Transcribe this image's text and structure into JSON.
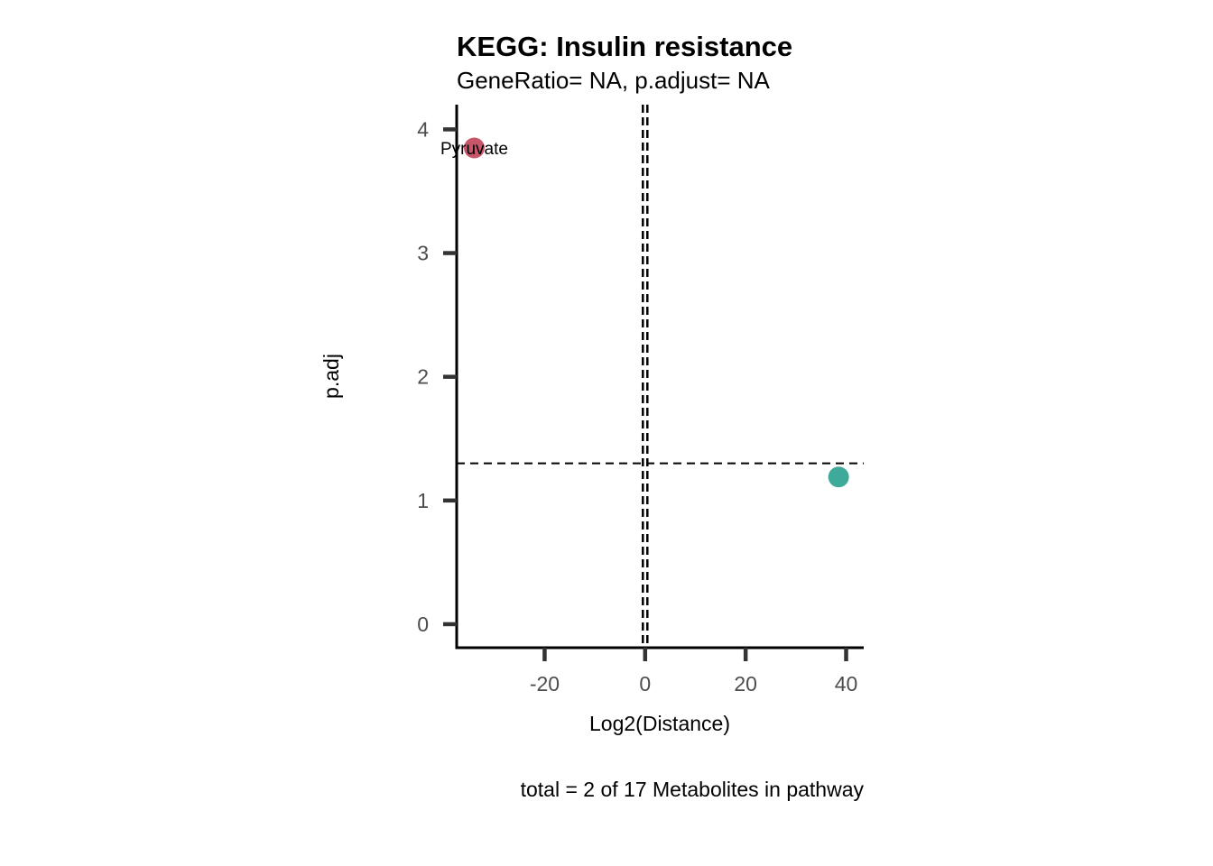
{
  "chart_data": {
    "type": "scatter",
    "title": "KEGG: Insulin resistance",
    "subtitle": "GeneRatio= NA, p.adjust= NA",
    "xlabel": "Log2(Distance)",
    "ylabel": "p.adj",
    "caption": "total = 2 of 17 Metabolites in pathway",
    "xlim": [
      -37.5,
      43.5
    ],
    "ylim": [
      -0.19,
      4.2
    ],
    "x_ticks": [
      -20,
      0,
      20,
      40
    ],
    "x_tick_labels": [
      "-20",
      "0",
      "20",
      "40"
    ],
    "y_ticks": [
      0,
      1,
      2,
      3,
      4
    ],
    "y_tick_labels": [
      "0",
      "1",
      "2",
      "3",
      "4"
    ],
    "reference_lines": {
      "vertical_x": 0,
      "horizontal_y": 1.3
    },
    "grid": false,
    "legend": "none",
    "points": [
      {
        "x": -34,
        "y": 3.85,
        "label": "Pyruvate",
        "color": "#c8566a"
      },
      {
        "x": 38.5,
        "y": 1.19,
        "label": "",
        "color": "#3fa99a"
      }
    ]
  }
}
